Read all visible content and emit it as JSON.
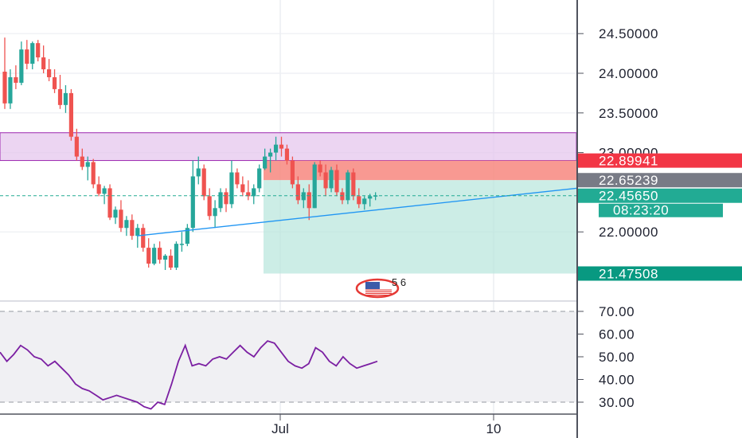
{
  "chart_data": [
    {
      "type": "candlestick",
      "y_scale": "price",
      "ylim": [
        21.3,
        24.85
      ],
      "y_ticks": [
        "24.50000",
        "24.00000",
        "23.50000",
        "23.00000",
        "22.00000"
      ],
      "x_ticks": [
        "Jul",
        "10"
      ],
      "grid": true,
      "colors": {
        "up": "#26a69a",
        "down": "#ef5350",
        "rsi": "#7b1fa2",
        "trend": "#2196f3"
      },
      "candles": [
        [
          24.02,
          24.45,
          23.55,
          23.62
        ],
        [
          23.62,
          24.05,
          23.55,
          23.95
        ],
        [
          23.95,
          24.1,
          23.8,
          23.88
        ],
        [
          23.88,
          24.4,
          23.85,
          24.3
        ],
        [
          24.3,
          24.42,
          24.05,
          24.12
        ],
        [
          24.12,
          24.4,
          24.05,
          24.38
        ],
        [
          24.38,
          24.42,
          24.15,
          24.2
        ],
        [
          24.2,
          24.35,
          24.0,
          24.05
        ],
        [
          24.05,
          24.18,
          23.9,
          23.95
        ],
        [
          23.95,
          24.05,
          23.75,
          23.8
        ],
        [
          23.8,
          23.98,
          23.55,
          23.6
        ],
        [
          23.6,
          23.85,
          23.5,
          23.75
        ],
        [
          23.75,
          23.8,
          23.15,
          23.2
        ],
        [
          23.2,
          23.3,
          22.9,
          22.95
        ],
        [
          22.95,
          23.05,
          22.78,
          22.82
        ],
        [
          22.82,
          22.95,
          22.65,
          22.88
        ],
        [
          22.88,
          22.92,
          22.55,
          22.6
        ],
        [
          22.6,
          22.7,
          22.45,
          22.48
        ],
        [
          22.48,
          22.58,
          22.35,
          22.55
        ],
        [
          22.55,
          22.6,
          22.15,
          22.18
        ],
        [
          22.18,
          22.32,
          22.1,
          22.28
        ],
        [
          22.28,
          22.4,
          22.0,
          22.05
        ],
        [
          22.05,
          22.2,
          21.95,
          22.15
        ],
        [
          22.15,
          22.22,
          21.9,
          21.95
        ],
        [
          21.95,
          22.1,
          21.8,
          22.05
        ],
        [
          22.05,
          22.1,
          21.75,
          21.8
        ],
        [
          21.8,
          21.92,
          21.55,
          21.6
        ],
        [
          21.6,
          21.85,
          21.58,
          21.8
        ],
        [
          21.8,
          21.88,
          21.6,
          21.65
        ],
        [
          21.65,
          21.72,
          21.52,
          21.7
        ],
        [
          21.7,
          21.78,
          21.52,
          21.55
        ],
        [
          21.55,
          21.88,
          21.52,
          21.85
        ],
        [
          21.85,
          22.0,
          21.75,
          21.85
        ],
        [
          21.85,
          22.1,
          21.82,
          22.05
        ],
        [
          22.05,
          22.9,
          22.0,
          22.7
        ],
        [
          22.7,
          22.95,
          22.6,
          22.8
        ],
        [
          22.8,
          22.85,
          22.4,
          22.45
        ],
        [
          22.45,
          22.55,
          22.15,
          22.2
        ],
        [
          22.2,
          22.4,
          22.05,
          22.3
        ],
        [
          22.3,
          22.55,
          22.25,
          22.5
        ],
        [
          22.5,
          22.55,
          22.25,
          22.35
        ],
        [
          22.35,
          22.9,
          22.3,
          22.75
        ],
        [
          22.75,
          22.8,
          22.55,
          22.6
        ],
        [
          22.6,
          22.7,
          22.45,
          22.5
        ],
        [
          22.5,
          22.65,
          22.4,
          22.45
        ],
        [
          22.45,
          22.6,
          22.35,
          22.55
        ],
        [
          22.55,
          22.85,
          22.5,
          22.8
        ],
        [
          22.8,
          23.05,
          22.78,
          22.95
        ],
        [
          22.95,
          23.05,
          22.75,
          23.0
        ],
        [
          23.0,
          23.2,
          22.9,
          23.1
        ],
        [
          23.1,
          23.2,
          22.95,
          23.05
        ],
        [
          23.05,
          23.1,
          22.85,
          22.9
        ],
        [
          22.9,
          22.95,
          22.55,
          22.6
        ],
        [
          22.6,
          22.7,
          22.35,
          22.4
        ],
        [
          22.4,
          22.55,
          22.3,
          22.5
        ],
        [
          22.5,
          22.6,
          22.15,
          22.3
        ],
        [
          22.3,
          22.88,
          22.3,
          22.85
        ],
        [
          22.85,
          22.9,
          22.7,
          22.75
        ],
        [
          22.75,
          22.85,
          22.45,
          22.55
        ],
        [
          22.55,
          22.82,
          22.5,
          22.78
        ],
        [
          22.78,
          22.85,
          22.45,
          22.5
        ],
        [
          22.5,
          22.55,
          22.35,
          22.4
        ],
        [
          22.4,
          22.78,
          22.35,
          22.75
        ],
        [
          22.75,
          22.8,
          22.4,
          22.45
        ],
        [
          22.45,
          22.55,
          22.3,
          22.35
        ],
        [
          22.35,
          22.45,
          22.28,
          22.42
        ],
        [
          22.42,
          22.48,
          22.32,
          22.45
        ],
        [
          22.45,
          22.5,
          22.4,
          22.46
        ]
      ],
      "trendline": [
        [
          22.1,
          21.95
        ],
        [
          22.78,
          22.55
        ]
      ],
      "zones": {
        "resistance": [
          22.9,
          23.25
        ],
        "stop": [
          22.65239,
          22.89941
        ],
        "target": [
          21.47508,
          22.65239
        ]
      },
      "current_price": 22.4565,
      "price_labels": [
        {
          "value": "22.89941",
          "color": "#f23645"
        },
        {
          "value": "22.65239",
          "color": "#787b86"
        },
        {
          "value": "22.45650",
          "color": "#22ab94"
        },
        {
          "value": "21.47508",
          "color": "#089981"
        }
      ],
      "countdown": "08:23:20",
      "event_marker": {
        "icon": "us-flag-event-icon",
        "text": "5 6"
      }
    },
    {
      "type": "line",
      "name": "RSI",
      "ylim": [
        27,
        72
      ],
      "y_ticks": [
        "70.00",
        "60.00",
        "50.00",
        "40.00",
        "30.00"
      ],
      "bands": [
        30,
        70
      ],
      "values": [
        52,
        48,
        51,
        55,
        53,
        50,
        49,
        46,
        48,
        45,
        42,
        38,
        36,
        35,
        33,
        31,
        32,
        33,
        32,
        31,
        30,
        28,
        27,
        30,
        29,
        38,
        48,
        55,
        46,
        47,
        46,
        49,
        50,
        49,
        52,
        55,
        52,
        50,
        54,
        57,
        56,
        52,
        48,
        46,
        45,
        47,
        54,
        52,
        48,
        46,
        50,
        47,
        45,
        46,
        47,
        48
      ]
    }
  ]
}
